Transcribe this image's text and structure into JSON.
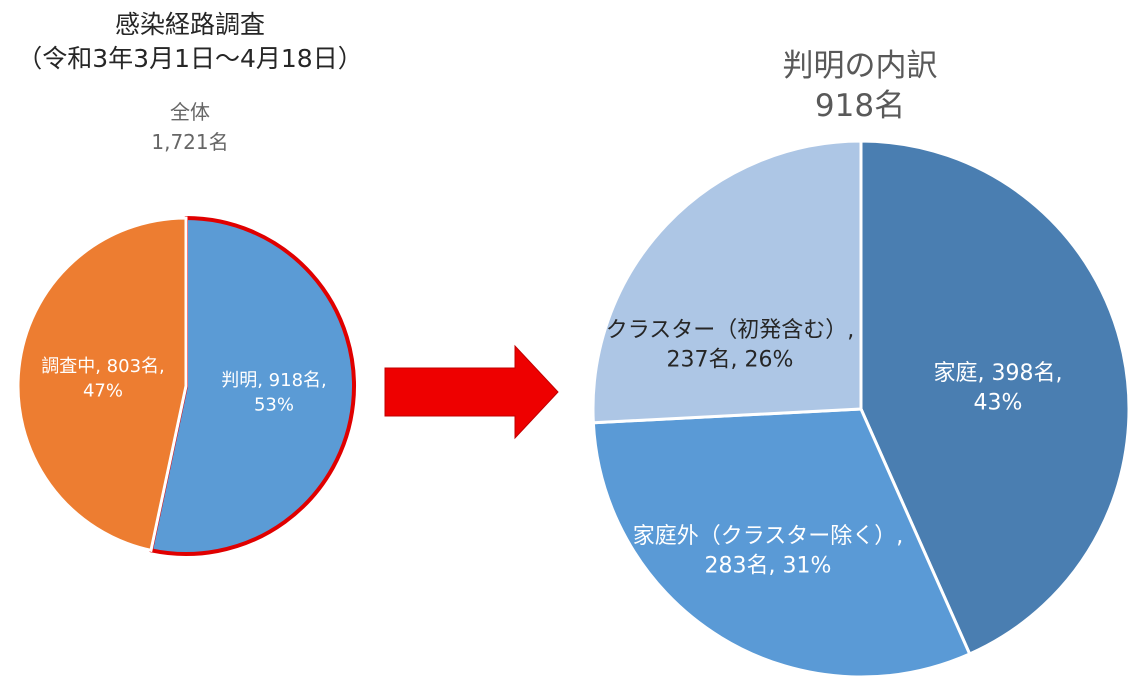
{
  "colors": {
    "left_known": "#5b9bd5",
    "left_investigating": "#ed7d31",
    "highlight_border": "#e00000",
    "arrow": "#ee0000",
    "right_family": "#4a7eb1",
    "right_outside_family": "#5a9ad6",
    "right_cluster": "#adc6e5"
  },
  "chart_data": [
    {
      "type": "pie",
      "title": "感染経路調査",
      "subtitle": "（令和3年3月1日～4月18日）",
      "total_label": "全体",
      "total_value": "1,721名",
      "slices": [
        {
          "name": "判明",
          "value": 918,
          "percent": 53,
          "label_line1": "判明, 918名,",
          "label_line2": "53%",
          "color": "#5b9bd5",
          "highlighted": true
        },
        {
          "name": "調査中",
          "value": 803,
          "percent": 47,
          "label_line1": "調査中, 803名,",
          "label_line2": "47%",
          "color": "#ed7d31",
          "highlighted": false
        }
      ]
    },
    {
      "type": "pie",
      "title": "判明の内訳",
      "total_value": "918名",
      "slices": [
        {
          "name": "家庭",
          "value": 398,
          "percent": 43,
          "label_line1": "家庭, 398名,",
          "label_line2": "43%",
          "color": "#4a7eb1"
        },
        {
          "name": "家庭外（クラスター除く）",
          "value": 283,
          "percent": 31,
          "label_line1": "家庭外（クラスター除く）,",
          "label_line2": "283名, 31%",
          "color": "#5a9ad6"
        },
        {
          "name": "クラスター（初発含む）",
          "value": 237,
          "percent": 26,
          "label_line1": "クラスター（初発含む）,",
          "label_line2": "237名, 26%",
          "color": "#adc6e5"
        }
      ]
    }
  ]
}
